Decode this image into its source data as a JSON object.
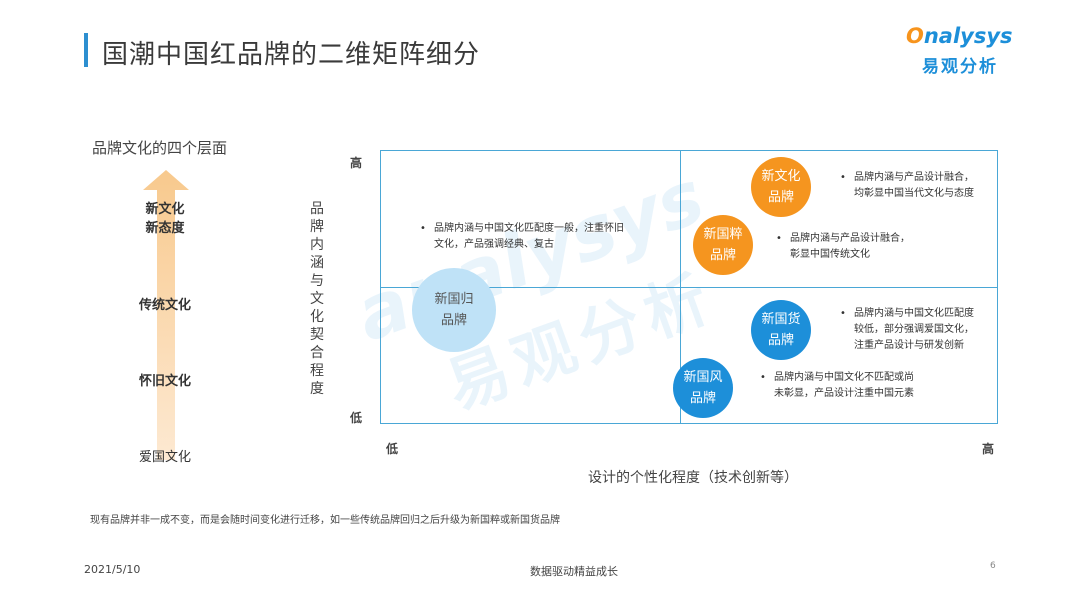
{
  "slide": {
    "title": "国潮中国红品牌的二维矩阵细分",
    "logo": {
      "en_o": "O",
      "en_rest": "nalysys",
      "cn": "易观分析"
    },
    "watermark": {
      "en": "analysys",
      "cn": "易观分析"
    }
  },
  "levels": {
    "title": "品牌文化的四个层面",
    "items": [
      {
        "line1": "新文化",
        "line2": "新态度"
      },
      {
        "line1": "传统文化",
        "line2": ""
      },
      {
        "line1": "怀旧文化",
        "line2": ""
      },
      {
        "line1": "爱国文化",
        "line2": ""
      }
    ]
  },
  "matrix": {
    "y_axis_label": "品牌内涵与文化契合程度",
    "y_high": "高",
    "y_low": "低",
    "x_axis_label": "设计的个性化程度（技术创新等）",
    "x_low": "低",
    "x_high": "高",
    "brands": [
      {
        "line1": "新国归",
        "line2": "品牌",
        "color": "#bfe2f7",
        "desc": [
          "品牌内涵与中国文化匹配度一般，注重怀旧",
          "文化，产品强调经典、复古"
        ]
      },
      {
        "line1": "新文化",
        "line2": "品牌",
        "color": "#f5951f",
        "desc": [
          "品牌内涵与产品设计融合，",
          "均彰显中国当代文化与态度"
        ]
      },
      {
        "line1": "新国粹",
        "line2": "品牌",
        "color": "#f5951f",
        "desc": [
          "品牌内涵与产品设计融合，",
          "彰显中国传统文化"
        ]
      },
      {
        "line1": "新国货",
        "line2": "品牌",
        "color": "#1d8fd9",
        "desc": [
          "品牌内涵与中国文化匹配度",
          "较低，部分强调爱国文化，",
          "注重产品设计与研发创新"
        ]
      },
      {
        "line1": "新国风",
        "line2": "品牌",
        "color": "#1d8fd9",
        "desc": [
          "品牌内涵与中国文化不匹配或尚",
          "未彰显，产品设计注重中国元素"
        ]
      }
    ]
  },
  "note": "现有品牌并非一成不变，而是会随时间变化进行迁移，如一些传统品牌回归之后升级为新国粹或新国货品牌",
  "footer": {
    "date": "2021/5/10",
    "center": "数据驱动精益成长",
    "page": "6"
  }
}
